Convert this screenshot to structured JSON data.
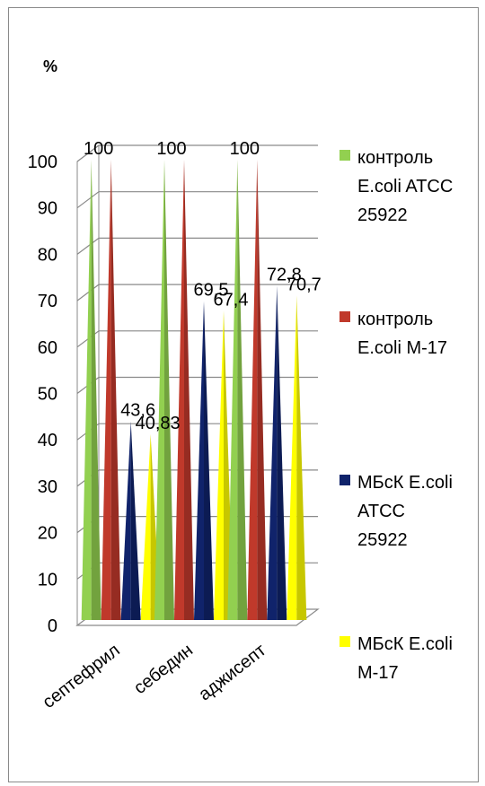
{
  "chart_data": {
    "type": "bar",
    "style": "3d-cone",
    "unit_label": "%",
    "categories": [
      "септефрил",
      "себедин",
      "аджисепт"
    ],
    "series": [
      {
        "name": "контроль E.coli  ATCC 25922",
        "legend_lines": [
          "контроль",
          "E.coli  ATCC",
          "25922"
        ],
        "color": "#92d050",
        "values": [
          100,
          100,
          100
        ],
        "labels": [
          "100",
          "100",
          "100"
        ]
      },
      {
        "name": "контроль E.coli M-17",
        "legend_lines": [
          "контроль",
          "E.coli M-17"
        ],
        "color": "#c0392b",
        "values": [
          100,
          100,
          100
        ],
        "labels": [
          "",
          "",
          ""
        ]
      },
      {
        "name": "МБсК E.coli ATCC 25922",
        "legend_lines": [
          "МБсК E.coli",
          "ATCC",
          "25922"
        ],
        "color": "#10236b",
        "values": [
          43.6,
          69.5,
          72.8
        ],
        "labels": [
          "43,6",
          "69,5",
          "72,8"
        ]
      },
      {
        "name": "МБсК E.coli M-17",
        "legend_lines": [
          "МБсК E.coli",
          "M-17"
        ],
        "color": "#ffff00",
        "values": [
          40.83,
          67.4,
          70.7
        ],
        "labels": [
          "40,83",
          "67,4",
          "70,7"
        ]
      }
    ],
    "yticks": [
      "0",
      "10",
      "20",
      "30",
      "40",
      "50",
      "60",
      "70",
      "80",
      "90",
      "100"
    ],
    "ylim": [
      0,
      100
    ],
    "grid": true,
    "legend_position": "right"
  }
}
